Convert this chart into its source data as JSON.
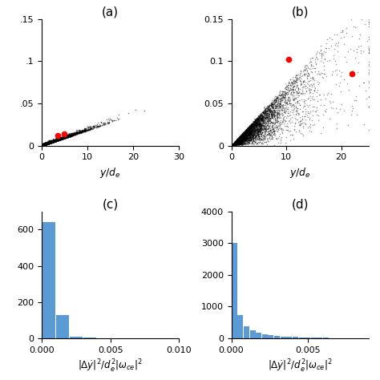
{
  "panel_a": {
    "label": "(a)",
    "xlim": [
      0,
      30
    ],
    "ylim": [
      0,
      0.15
    ],
    "yticks": [
      0,
      0.05,
      0.1,
      0.15
    ],
    "yticklabels": [
      "0",
      ".05",
      ".1",
      ".15"
    ],
    "xticks": [
      0,
      10,
      20,
      30
    ],
    "xlabel": "$y/d_e$",
    "red_points": [
      [
        3.5,
        0.012
      ],
      [
        4.8,
        0.014
      ]
    ],
    "n_points": 4000
  },
  "panel_b": {
    "label": "(b)",
    "xlim": [
      0,
      25
    ],
    "ylim": [
      0,
      0.15
    ],
    "yticks": [
      0,
      0.05,
      0.1,
      0.15
    ],
    "yticklabels": [
      "0",
      "0.05",
      "0.1",
      "0.15"
    ],
    "xticks": [
      0,
      10,
      20
    ],
    "xlabel": "$y/d_e$",
    "red_points": [
      [
        10.5,
        0.102
      ],
      [
        22.0,
        0.085
      ]
    ],
    "n_points": 6000
  },
  "panel_c": {
    "label": "(c)",
    "xlim": [
      0,
      0.01
    ],
    "ylim": [
      0,
      700
    ],
    "yticks": [
      0,
      200,
      400,
      600
    ],
    "xticks": [
      0,
      0.005,
      0.01
    ],
    "xlabel": "$|\\Delta\\dot{y}|^2/d_e^2|\\omega_{ce}|^2$",
    "bar_color": "#5b9bd5",
    "hist_values": [
      640,
      130,
      8,
      2,
      1,
      0,
      0,
      0,
      0,
      0
    ],
    "bin_width": 0.001
  },
  "panel_d": {
    "label": "(d)",
    "xlim": [
      0,
      0.009
    ],
    "ylim": [
      0,
      4000
    ],
    "yticks": [
      0,
      1000,
      2000,
      3000,
      4000
    ],
    "xticks": [
      0,
      0.005
    ],
    "xlabel": "$|\\Delta\\dot{y}|^2/d_e^2|\\omega_{ce}|^2$",
    "bar_color": "#5b9bd5",
    "hist_values": [
      3000,
      730,
      380,
      240,
      175,
      130,
      95,
      75,
      55,
      45,
      35,
      28,
      22,
      17,
      13,
      10,
      8,
      6,
      5,
      4,
      3,
      2
    ],
    "bin_width": 0.0004
  },
  "scatter_color": "black",
  "scatter_size": 1.2,
  "label_fontsize": 11,
  "tick_fontsize": 8,
  "axis_label_fontsize": 9
}
